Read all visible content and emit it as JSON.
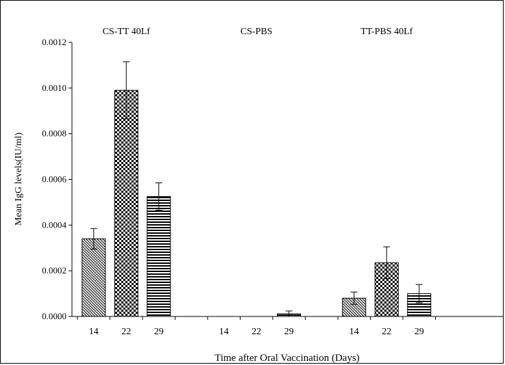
{
  "chart_data": {
    "type": "bar",
    "title": "",
    "xlabel": "Time after Oral Vaccination (Days)",
    "ylabel": "Mean IgG levels(IU/ml)",
    "ylim": [
      0,
      0.0012
    ],
    "yticks": [
      "0.0000",
      "0.0002",
      "0.0004",
      "0.0006",
      "0.0008",
      "0.0010",
      "0.0012"
    ],
    "grid": false,
    "groups": [
      {
        "label": "CS-TT 40Lf",
        "bars": [
          {
            "day": "14",
            "value": 0.00034,
            "error": 4.5e-05,
            "pattern": "diagonal"
          },
          {
            "day": "22",
            "value": 0.00099,
            "error": 0.000125,
            "pattern": "checker"
          },
          {
            "day": "29",
            "value": 0.000525,
            "error": 6e-05,
            "pattern": "horizontal"
          }
        ]
      },
      {
        "label": "CS-PBS",
        "bars": [
          {
            "day": "14",
            "value": 0.0,
            "error": 0.0,
            "pattern": "diagonal"
          },
          {
            "day": "22",
            "value": 0.0,
            "error": 0.0,
            "pattern": "checker"
          },
          {
            "day": "29",
            "value": 1.2e-05,
            "error": 1.2e-05,
            "pattern": "horizontal"
          }
        ]
      },
      {
        "label": "TT-PBS 40Lf",
        "bars": [
          {
            "day": "14",
            "value": 8e-05,
            "error": 2.7e-05,
            "pattern": "diagonal"
          },
          {
            "day": "22",
            "value": 0.000235,
            "error": 7e-05,
            "pattern": "checker"
          },
          {
            "day": "29",
            "value": 0.0001,
            "error": 4e-05,
            "pattern": "horizontal"
          }
        ]
      }
    ]
  }
}
